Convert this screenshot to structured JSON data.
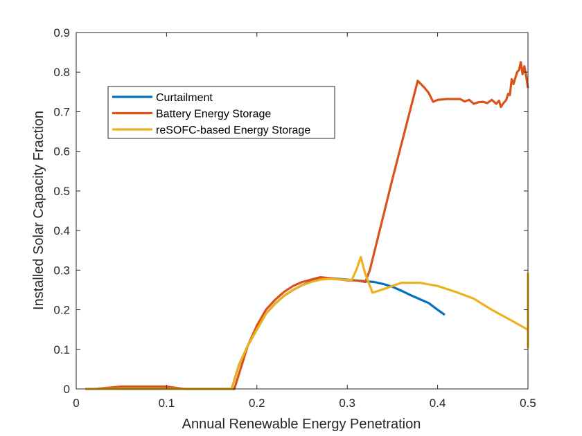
{
  "chart_data": {
    "type": "line",
    "xlabel": "Annual Renewable Energy Penetration",
    "ylabel": "Installed Solar Capacity Fraction",
    "xlim": [
      0,
      0.5
    ],
    "ylim": [
      0,
      0.9
    ],
    "xticks": [
      0,
      0.1,
      0.2,
      0.3,
      0.4,
      0.5
    ],
    "xtick_labels": [
      "0",
      "0.1",
      "0.2",
      "0.3",
      "0.4",
      "0.5"
    ],
    "yticks": [
      0,
      0.1,
      0.2,
      0.3,
      0.4,
      0.5,
      0.6,
      0.7,
      0.8,
      0.9
    ],
    "ytick_labels": [
      "0",
      "0.1",
      "0.2",
      "0.3",
      "0.4",
      "0.5",
      "0.6",
      "0.7",
      "0.8",
      "0.9"
    ],
    "grid": false,
    "legend": "upper-left",
    "series": [
      {
        "name": "Curtailment",
        "color": "#0072BD",
        "x": [
          0.01,
          0.02,
          0.05,
          0.1,
          0.15,
          0.172,
          0.18,
          0.19,
          0.2,
          0.21,
          0.22,
          0.23,
          0.24,
          0.25,
          0.26,
          0.27,
          0.28,
          0.29,
          0.3,
          0.31,
          0.32,
          0.33,
          0.34,
          0.35,
          0.36,
          0.37,
          0.38,
          0.39,
          0.4,
          0.408
        ],
        "y": [
          0.0,
          0.0,
          0.0,
          0.0,
          0.0,
          0.0,
          0.06,
          0.11,
          0.15,
          0.19,
          0.215,
          0.235,
          0.25,
          0.262,
          0.272,
          0.278,
          0.28,
          0.278,
          0.276,
          0.274,
          0.272,
          0.27,
          0.265,
          0.258,
          0.248,
          0.237,
          0.227,
          0.217,
          0.2,
          0.187
        ]
      },
      {
        "name": "Battery Energy Storage",
        "color": "#D95319",
        "x": [
          0.02,
          0.05,
          0.1,
          0.12,
          0.17,
          0.175,
          0.19,
          0.2,
          0.21,
          0.22,
          0.23,
          0.24,
          0.25,
          0.26,
          0.27,
          0.28,
          0.29,
          0.3,
          0.31,
          0.32,
          0.325,
          0.35,
          0.378,
          0.385,
          0.39,
          0.395,
          0.4,
          0.41,
          0.42,
          0.425,
          0.43,
          0.435,
          0.44,
          0.445,
          0.45,
          0.455,
          0.46,
          0.465,
          0.468,
          0.47,
          0.473,
          0.476,
          0.478,
          0.48,
          0.482,
          0.484,
          0.486,
          0.488,
          0.49,
          0.492,
          0.494,
          0.496,
          0.498,
          0.5
        ],
        "y": [
          0.0,
          0.006,
          0.006,
          0.0,
          0.0,
          0.0,
          0.11,
          0.16,
          0.2,
          0.225,
          0.245,
          0.26,
          0.27,
          0.276,
          0.282,
          0.28,
          0.277,
          0.274,
          0.274,
          0.27,
          0.3,
          0.53,
          0.778,
          0.762,
          0.748,
          0.725,
          0.73,
          0.732,
          0.732,
          0.732,
          0.726,
          0.73,
          0.72,
          0.724,
          0.725,
          0.722,
          0.73,
          0.72,
          0.728,
          0.712,
          0.722,
          0.73,
          0.745,
          0.742,
          0.782,
          0.77,
          0.785,
          0.8,
          0.805,
          0.825,
          0.795,
          0.815,
          0.79,
          0.76
        ]
      },
      {
        "name": "reSOFC-based Energy Storage",
        "color": "#EDB120",
        "x": [
          0.01,
          0.05,
          0.1,
          0.15,
          0.172,
          0.18,
          0.19,
          0.2,
          0.21,
          0.22,
          0.23,
          0.24,
          0.25,
          0.26,
          0.27,
          0.28,
          0.29,
          0.3,
          0.305,
          0.31,
          0.315,
          0.32,
          0.328,
          0.34,
          0.36,
          0.38,
          0.4,
          0.42,
          0.44,
          0.46,
          0.48,
          0.498,
          0.5,
          0.5,
          0.5
        ],
        "y": [
          0.0,
          0.0,
          0.0,
          0.0,
          0.0,
          0.06,
          0.11,
          0.15,
          0.19,
          0.215,
          0.235,
          0.25,
          0.262,
          0.27,
          0.276,
          0.278,
          0.277,
          0.275,
          0.275,
          0.3,
          0.333,
          0.29,
          0.243,
          0.252,
          0.268,
          0.268,
          0.26,
          0.245,
          0.228,
          0.2,
          0.175,
          0.152,
          0.148,
          0.105,
          0.293
        ]
      }
    ]
  }
}
